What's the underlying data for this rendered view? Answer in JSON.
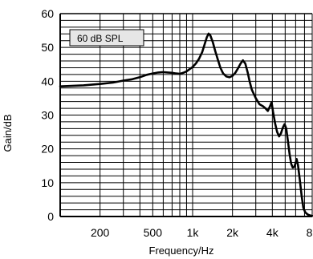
{
  "chart_data": {
    "type": "line",
    "title": "",
    "xlabel": "Frequency/Hz",
    "ylabel": "Gain/dB",
    "x_scale": "log",
    "xlim": [
      100,
      8000
    ],
    "ylim": [
      0,
      60
    ],
    "x_ticks": [
      {
        "value": 200,
        "label": "200"
      },
      {
        "value": 500,
        "label": "500"
      },
      {
        "value": 1000,
        "label": "1k"
      },
      {
        "value": 2000,
        "label": "2k"
      },
      {
        "value": 4000,
        "label": "4k"
      },
      {
        "value": 8000,
        "label": "8k"
      }
    ],
    "y_ticks": [
      0,
      10,
      20,
      30,
      40,
      50,
      60
    ],
    "grid": true,
    "legend": {
      "label": "60 dB SPL",
      "position": "top-left"
    },
    "series": [
      {
        "points": [
          [
            100,
            38.5
          ],
          [
            150,
            38.8
          ],
          [
            200,
            39.2
          ],
          [
            250,
            39.6
          ],
          [
            300,
            40.2
          ],
          [
            350,
            40.6
          ],
          [
            400,
            41.2
          ],
          [
            450,
            41.9
          ],
          [
            500,
            42.3
          ],
          [
            550,
            42.6
          ],
          [
            600,
            42.7
          ],
          [
            650,
            42.6
          ],
          [
            700,
            42.5
          ],
          [
            750,
            42.3
          ],
          [
            800,
            42.2
          ],
          [
            850,
            42.5
          ],
          [
            900,
            42.9
          ],
          [
            950,
            43.6
          ],
          [
            1000,
            44.2
          ],
          [
            1060,
            45.3
          ],
          [
            1120,
            46.7
          ],
          [
            1180,
            48.6
          ],
          [
            1230,
            50.8
          ],
          [
            1280,
            53.0
          ],
          [
            1320,
            54.1
          ],
          [
            1360,
            53.6
          ],
          [
            1420,
            51.6
          ],
          [
            1480,
            49.0
          ],
          [
            1550,
            46.4
          ],
          [
            1620,
            44.0
          ],
          [
            1700,
            42.3
          ],
          [
            1800,
            41.4
          ],
          [
            1900,
            41.2
          ],
          [
            2000,
            41.6
          ],
          [
            2100,
            42.5
          ],
          [
            2200,
            43.8
          ],
          [
            2300,
            45.2
          ],
          [
            2400,
            46.2
          ],
          [
            2500,
            45.2
          ],
          [
            2600,
            42.7
          ],
          [
            2700,
            39.8
          ],
          [
            2800,
            37.5
          ],
          [
            3000,
            35.0
          ],
          [
            3200,
            33.2
          ],
          [
            3400,
            32.6
          ],
          [
            3550,
            32.0
          ],
          [
            3700,
            31.2
          ],
          [
            3850,
            32.7
          ],
          [
            3950,
            33.8
          ],
          [
            4050,
            31.0
          ],
          [
            4200,
            27.5
          ],
          [
            4350,
            25.0
          ],
          [
            4500,
            23.7
          ],
          [
            4650,
            24.6
          ],
          [
            4800,
            26.3
          ],
          [
            4950,
            27.3
          ],
          [
            5100,
            26.0
          ],
          [
            5250,
            22.2
          ],
          [
            5400,
            18.5
          ],
          [
            5550,
            15.6
          ],
          [
            5700,
            14.5
          ],
          [
            5850,
            14.6
          ],
          [
            6000,
            15.9
          ],
          [
            6100,
            17.0
          ],
          [
            6250,
            15.2
          ],
          [
            6450,
            10.8
          ],
          [
            6650,
            6.2
          ],
          [
            6850,
            2.6
          ],
          [
            7100,
            1.2
          ],
          [
            7400,
            0.6
          ],
          [
            7700,
            0.3
          ],
          [
            8000,
            0.2
          ]
        ]
      }
    ]
  }
}
